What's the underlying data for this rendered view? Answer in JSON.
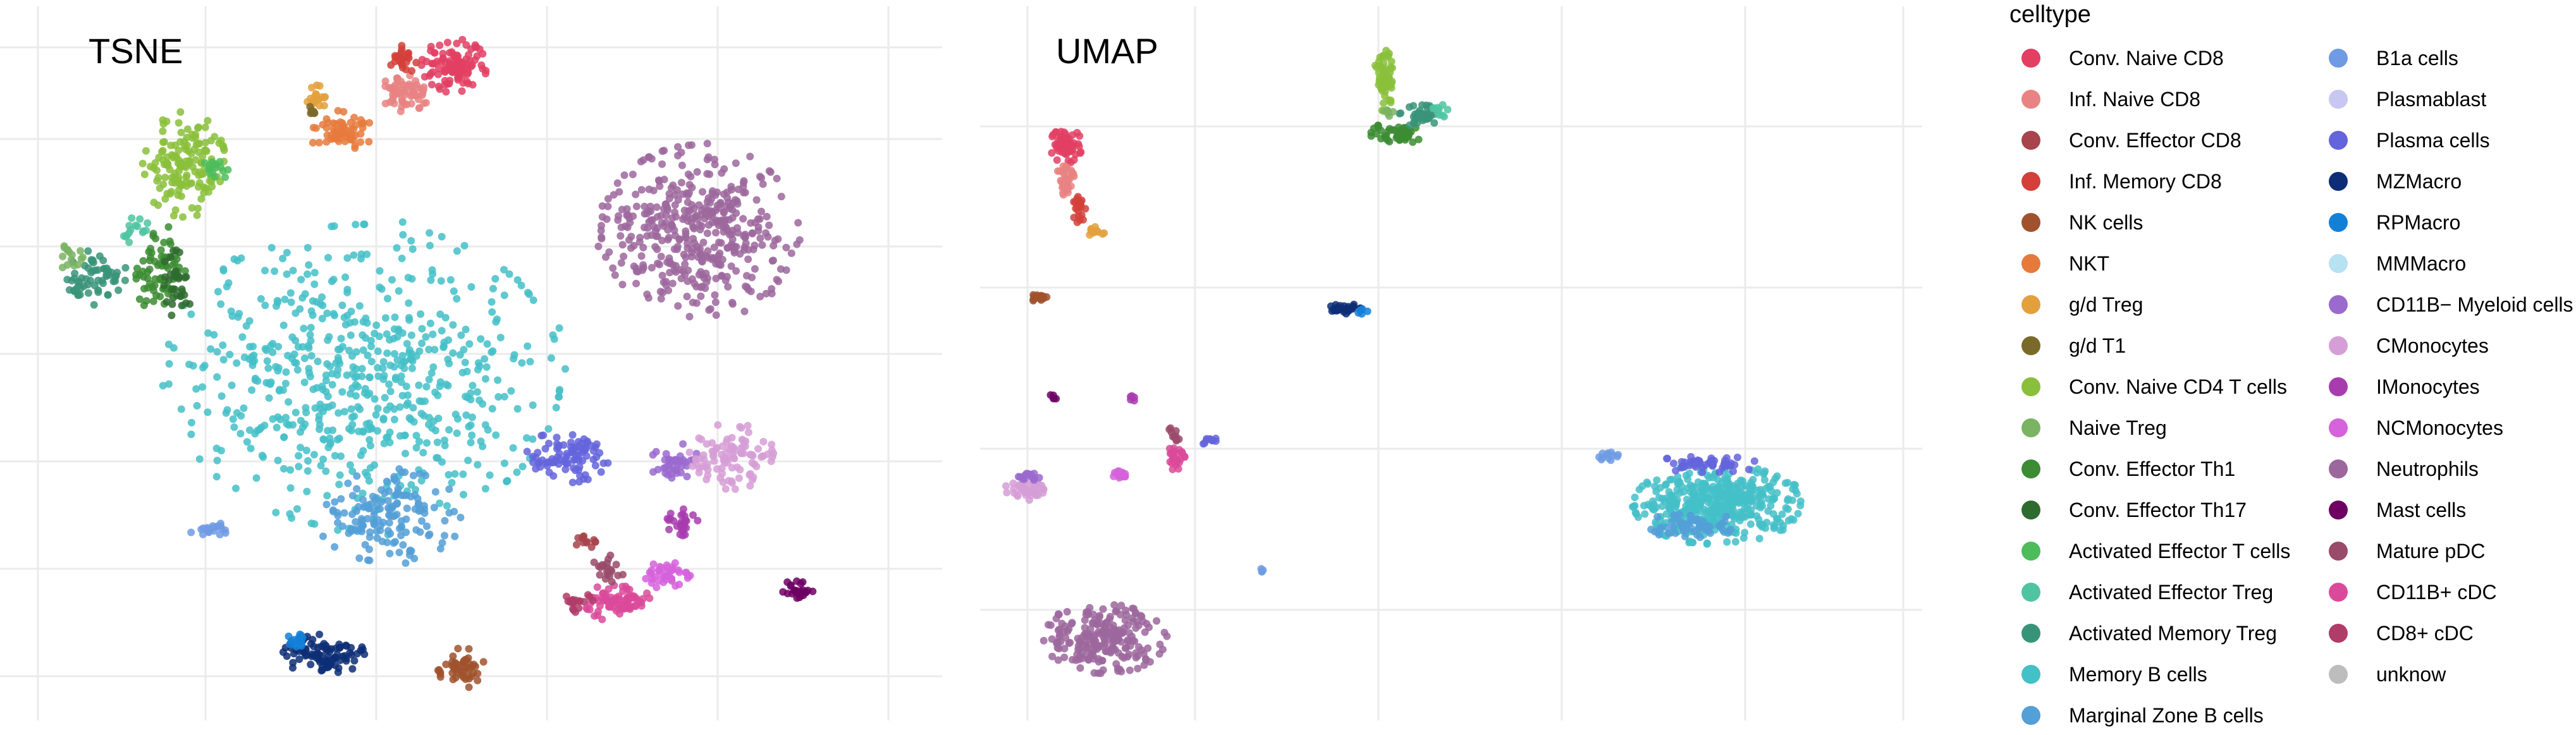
{
  "palette": {
    "Conv. Naive CD8": "#E23F63",
    "Inf. Naive CD8": "#E98383",
    "Conv. Effector CD8": "#A7444C",
    "Inf. Memory CD8": "#D43F3A",
    "NK cells": "#A0522D",
    "NKT": "#E67A3C",
    "g/d Treg": "#E3A03C",
    "g/d T1": "#7A6A2A",
    "Conv. Naive CD4 T cells": "#8ABF3B",
    "Naive Treg": "#7AB463",
    "Conv. Effector Th1": "#3C8C33",
    "Conv. Effector Th17": "#2E6B2E",
    "Activated Effector T cells": "#4CBD5A",
    "Activated Effector Treg": "#4FC4A0",
    "Activated Memory Treg": "#389478",
    "Memory B cells": "#44C0C8",
    "Marginal Zone B cells": "#539FD7",
    "B1a cells": "#6F9BE4",
    "Plasmablast": "#C7C7F2",
    "Plasma cells": "#6464DC",
    "MZMacro": "#0D2E76",
    "RPMacro": "#1380D8",
    "MMMacro": "#B6E2F2",
    "CD11B− Myeloid cells": "#9A6ACF",
    "CMonocytes": "#D69ED6",
    "IMonocytes": "#A83CAF",
    "NCMonocytes": "#D662DC",
    "Neutrophils": "#9C679C",
    "Mast cells": "#6E0064",
    "Mature pDC": "#9A4A6A",
    "CD11B+ cDC": "#DB4A9A",
    "CD8+ cDC": "#B03C6A",
    "unknow": "#BDBDBD"
  },
  "chart_data": [
    {
      "type": "scatter",
      "title": "TSNE",
      "xlim": [
        -55,
        55
      ],
      "ylim": [
        -52,
        52
      ],
      "grid": true,
      "clusters": [
        {
          "celltype": "Memory B cells",
          "cx": -15,
          "cy": -2,
          "rx": 24,
          "ry": 23,
          "n": 620
        },
        {
          "celltype": "Marginal Zone B cells",
          "cx": -12,
          "cy": -23,
          "rx": 9,
          "ry": 7,
          "n": 150
        },
        {
          "celltype": "Neutrophils",
          "cx": 26,
          "cy": 20,
          "rx": 12,
          "ry": 13,
          "n": 420
        },
        {
          "celltype": "Conv. Naive CD4 T cells",
          "cx": -37,
          "cy": 30,
          "rx": 5,
          "ry": 8,
          "n": 150
        },
        {
          "celltype": "Conv. Effector Th1",
          "cx": -40,
          "cy": 14,
          "rx": 3,
          "ry": 7,
          "n": 70
        },
        {
          "celltype": "Conv. Effector Th17",
          "cx": -38,
          "cy": 12,
          "rx": 2,
          "ry": 5,
          "n": 30
        },
        {
          "celltype": "Activated Memory Treg",
          "cx": -48,
          "cy": 13,
          "rx": 4,
          "ry": 4,
          "n": 60
        },
        {
          "celltype": "Naive Treg",
          "cx": -51,
          "cy": 16,
          "rx": 1.5,
          "ry": 2,
          "n": 15
        },
        {
          "celltype": "Activated Effector Treg",
          "cx": -43,
          "cy": 20,
          "rx": 2,
          "ry": 2,
          "n": 15
        },
        {
          "celltype": "Activated Effector T cells",
          "cx": -33,
          "cy": 29,
          "rx": 3,
          "ry": 2,
          "n": 15
        },
        {
          "celltype": "Conv. Naive CD8",
          "cx": -4,
          "cy": 45,
          "rx": 4,
          "ry": 4,
          "n": 110
        },
        {
          "celltype": "Inf. Naive CD8",
          "cx": -10,
          "cy": 41,
          "rx": 3,
          "ry": 3,
          "n": 60
        },
        {
          "celltype": "Inf. Memory CD8",
          "cx": -10,
          "cy": 46,
          "rx": 2,
          "ry": 2,
          "n": 25
        },
        {
          "celltype": "NKT",
          "cx": -18,
          "cy": 35,
          "rx": 4,
          "ry": 3,
          "n": 60
        },
        {
          "celltype": "g/d Treg",
          "cx": -21,
          "cy": 40,
          "rx": 1.5,
          "ry": 2,
          "n": 20
        },
        {
          "celltype": "g/d T1",
          "cx": -21,
          "cy": 38,
          "rx": 1,
          "ry": 1,
          "n": 8
        },
        {
          "celltype": "Plasma cells",
          "cx": 10,
          "cy": -14,
          "rx": 5,
          "ry": 4,
          "n": 90
        },
        {
          "celltype": "CD11B− Myeloid cells",
          "cx": 23,
          "cy": -15,
          "rx": 3,
          "ry": 3,
          "n": 40
        },
        {
          "celltype": "CMonocytes",
          "cx": 30,
          "cy": -14,
          "rx": 5,
          "ry": 5,
          "n": 100
        },
        {
          "celltype": "IMonocytes",
          "cx": 24,
          "cy": -24,
          "rx": 2,
          "ry": 2,
          "n": 30
        },
        {
          "celltype": "NCMonocytes",
          "cx": 22,
          "cy": -32,
          "rx": 3,
          "ry": 2,
          "n": 40
        },
        {
          "celltype": "CD11B+ cDC",
          "cx": 16,
          "cy": -36,
          "rx": 4,
          "ry": 3,
          "n": 80
        },
        {
          "celltype": "CD8+ cDC",
          "cx": 11,
          "cy": -36,
          "rx": 2,
          "ry": 1.5,
          "n": 20
        },
        {
          "celltype": "Mature pDC",
          "cx": 15,
          "cy": -31,
          "rx": 2,
          "ry": 2,
          "n": 20
        },
        {
          "celltype": "Mast cells",
          "cx": 38,
          "cy": -34,
          "rx": 2,
          "ry": 1.5,
          "n": 25
        },
        {
          "celltype": "MZMacro",
          "cx": -20,
          "cy": -44,
          "rx": 5,
          "ry": 3,
          "n": 90
        },
        {
          "celltype": "RPMacro",
          "cx": -23,
          "cy": -42,
          "rx": 1.5,
          "ry": 1.5,
          "n": 15
        },
        {
          "celltype": "NK cells",
          "cx": -3,
          "cy": -46,
          "rx": 3,
          "ry": 3,
          "n": 50
        },
        {
          "celltype": "B1a cells",
          "cx": -34,
          "cy": -25,
          "rx": 2.5,
          "ry": 1,
          "n": 20
        },
        {
          "celltype": "Conv. Effector CD8",
          "cx": 12,
          "cy": -27,
          "rx": 1.5,
          "ry": 1.5,
          "n": 12
        }
      ]
    },
    {
      "type": "scatter",
      "title": "UMAP",
      "xlim": [
        -12,
        16
      ],
      "ylim": [
        -14,
        10
      ],
      "grid": true,
      "clusters": [
        {
          "celltype": "Memory B cells",
          "cx": 9.8,
          "cy": -6.9,
          "rx": 2.6,
          "ry": 1.4,
          "n": 420
        },
        {
          "celltype": "Marginal Zone B cells",
          "cx": 9.0,
          "cy": -7.7,
          "rx": 1.6,
          "ry": 0.5,
          "n": 60
        },
        {
          "celltype": "Plasma cells",
          "cx": 9.5,
          "cy": -5.5,
          "rx": 1.6,
          "ry": 0.3,
          "n": 50
        },
        {
          "celltype": "B1a cells",
          "cx": 6.3,
          "cy": -5.2,
          "rx": 0.4,
          "ry": 0.2,
          "n": 12
        },
        {
          "celltype": "Neutrophils",
          "cx": -9.3,
          "cy": -11.6,
          "rx": 1.9,
          "ry": 1.2,
          "n": 220
        },
        {
          "celltype": "Conv. Naive CD4 T cells",
          "cx": -0.6,
          "cy": 7.9,
          "rx": 0.3,
          "ry": 1.1,
          "n": 60
        },
        {
          "celltype": "Conv. Effector Th1",
          "cx": -0.2,
          "cy": 6.0,
          "rx": 0.8,
          "ry": 0.4,
          "n": 50
        },
        {
          "celltype": "Activated Memory Treg",
          "cx": 0.6,
          "cy": 6.6,
          "rx": 0.7,
          "ry": 0.4,
          "n": 35
        },
        {
          "celltype": "Activated Effector Treg",
          "cx": 1.1,
          "cy": 6.8,
          "rx": 0.3,
          "ry": 0.3,
          "n": 10
        },
        {
          "celltype": "Naive Treg",
          "cx": -0.5,
          "cy": 6.8,
          "rx": 0.2,
          "ry": 0.2,
          "n": 8
        },
        {
          "celltype": "Conv. Naive CD8",
          "cx": -10.5,
          "cy": 5.6,
          "rx": 0.5,
          "ry": 0.6,
          "n": 60
        },
        {
          "celltype": "Inf. Naive CD8",
          "cx": -10.5,
          "cy": 4.4,
          "rx": 0.3,
          "ry": 0.6,
          "n": 35
        },
        {
          "celltype": "Inf. Memory CD8",
          "cx": -10.1,
          "cy": 3.4,
          "rx": 0.2,
          "ry": 0.5,
          "n": 20
        },
        {
          "celltype": "g/d Treg",
          "cx": -9.6,
          "cy": 2.6,
          "rx": 0.3,
          "ry": 0.2,
          "n": 12
        },
        {
          "celltype": "NK cells",
          "cx": -11.3,
          "cy": 0.3,
          "rx": 0.4,
          "ry": 0.15,
          "n": 20
        },
        {
          "celltype": "MZMacro",
          "cx": -1.8,
          "cy": -0.1,
          "rx": 0.5,
          "ry": 0.2,
          "n": 30
        },
        {
          "celltype": "RPMacro",
          "cx": -1.3,
          "cy": -0.2,
          "rx": 0.2,
          "ry": 0.15,
          "n": 6
        },
        {
          "celltype": "CMonocytes",
          "cx": -11.8,
          "cy": -6.4,
          "rx": 0.6,
          "ry": 0.4,
          "n": 40
        },
        {
          "celltype": "CD11B− Myeloid cells",
          "cx": -11.7,
          "cy": -5.9,
          "rx": 0.4,
          "ry": 0.2,
          "n": 15
        },
        {
          "celltype": "NCMonocytes",
          "cx": -8.8,
          "cy": -5.9,
          "rx": 0.4,
          "ry": 0.15,
          "n": 15
        },
        {
          "celltype": "CD11B+ cDC",
          "cx": -7.1,
          "cy": -5.3,
          "rx": 0.3,
          "ry": 0.4,
          "n": 30
        },
        {
          "celltype": "Mature pDC",
          "cx": -7.1,
          "cy": -4.4,
          "rx": 0.2,
          "ry": 0.3,
          "n": 10
        },
        {
          "celltype": "Plasma cells",
          "cx": -6.0,
          "cy": -4.7,
          "rx": 0.3,
          "ry": 0.15,
          "n": 10
        },
        {
          "celltype": "Mast cells",
          "cx": -10.9,
          "cy": -3.2,
          "rx": 0.15,
          "ry": 0.15,
          "n": 5
        },
        {
          "celltype": "IMonocytes",
          "cx": -8.4,
          "cy": -3.2,
          "rx": 0.15,
          "ry": 0.15,
          "n": 5
        },
        {
          "celltype": "B1a cells",
          "cx": -4.4,
          "cy": -9.2,
          "rx": 0.15,
          "ry": 0.1,
          "n": 4
        }
      ]
    }
  ],
  "legend": {
    "title": "celltype",
    "placement": "right",
    "columns": [
      [
        "Conv. Naive CD8",
        "Inf. Naive CD8",
        "Conv. Effector CD8",
        "Inf. Memory CD8",
        "NK cells",
        "NKT",
        "g/d Treg",
        "g/d T1",
        "Conv. Naive CD4 T cells",
        "Naive Treg",
        "Conv. Effector Th1",
        "Conv. Effector Th17",
        "Activated Effector T cells",
        "Activated Effector Treg",
        "Activated Memory Treg",
        "Memory B cells",
        "Marginal Zone B cells"
      ],
      [
        "B1a cells",
        "Plasmablast",
        "Plasma cells",
        "MZMacro",
        "RPMacro",
        "MMMacro",
        "CD11B− Myeloid cells",
        "CMonocytes",
        "IMonocytes",
        "NCMonocytes",
        "Neutrophils",
        "Mast cells",
        "Mature pDC",
        "CD11B+ cDC",
        "CD8+ cDC",
        "unknow"
      ]
    ]
  }
}
